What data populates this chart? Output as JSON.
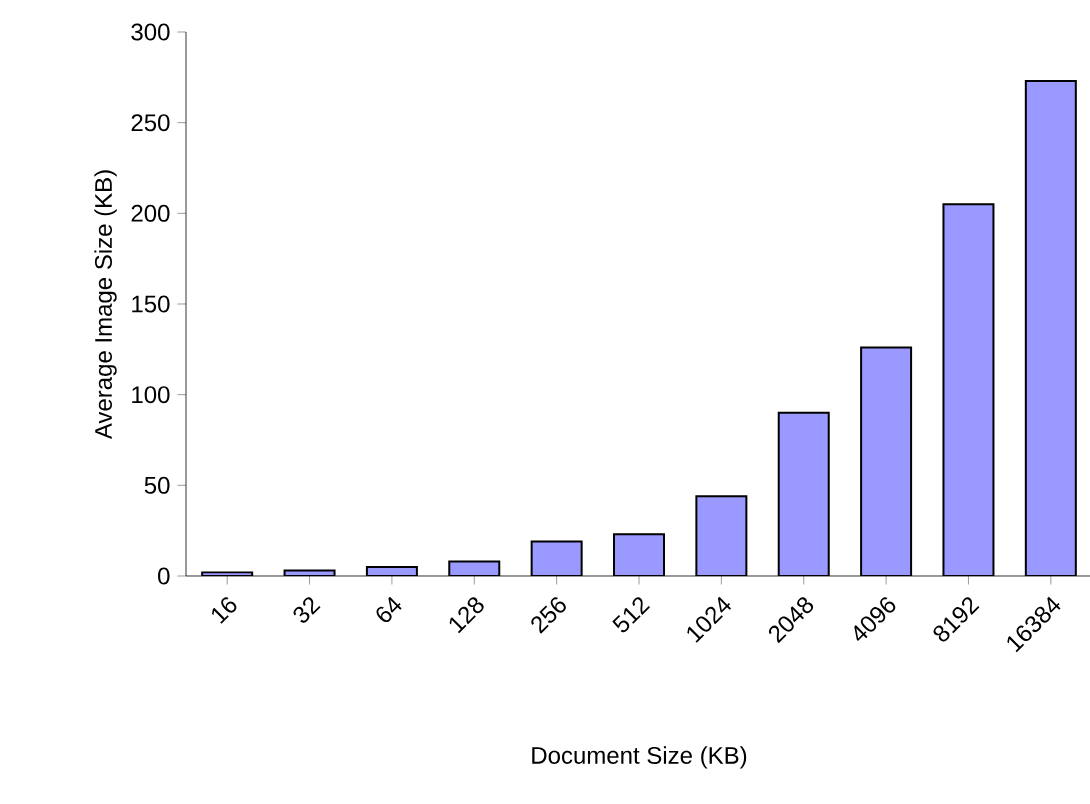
{
  "chart_data": {
    "type": "bar",
    "xlabel": "Document Size (KB)",
    "ylabel": "Average Image Size (KB)",
    "categories": [
      "16",
      "32",
      "64",
      "128",
      "256",
      "512",
      "1024",
      "2048",
      "4096",
      "8192",
      "16384"
    ],
    "values": [
      2,
      3,
      5,
      8,
      19,
      23,
      44,
      90,
      126,
      205,
      273
    ],
    "color": "#9999ff",
    "ylim": [
      0,
      300
    ],
    "yticks": [
      0,
      50,
      100,
      150,
      200,
      250,
      300
    ]
  }
}
